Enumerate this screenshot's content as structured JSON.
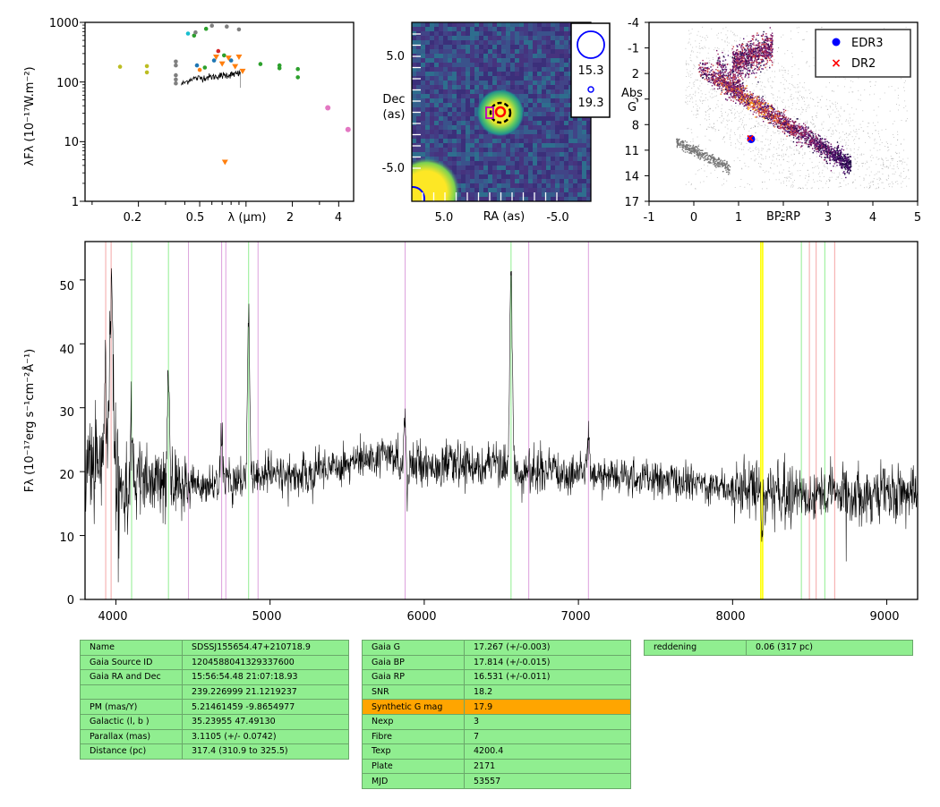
{
  "sed": {
    "ylabel": "λFλ (10⁻¹⁷W.m⁻²)",
    "xlabel": "λ (μm)",
    "xticks": [
      "0.2",
      "0.5",
      "λ (μm)",
      "2",
      "4"
    ],
    "yticks": [
      "1000",
      "100",
      "10",
      "1"
    ]
  },
  "image": {
    "ylabel_1": "Dec",
    "ylabel_2": "(as)",
    "xlabel": "RA (as)",
    "xticks": [
      "5.0",
      "-5.0"
    ],
    "yticks": [
      "5.0",
      "-5.0"
    ],
    "legend": [
      "15.3",
      "19.3"
    ]
  },
  "hr": {
    "xlabel": "BP-RP",
    "ylabel_1": "Abs",
    "ylabel_2": "G",
    "xticks": [
      "-1",
      "0",
      "1",
      "2",
      "3",
      "4",
      "5"
    ],
    "yticks": [
      "-4",
      "-1",
      "2",
      "5",
      "8",
      "11",
      "14",
      "17"
    ],
    "legend": [
      {
        "label": "EDR3",
        "color": "#0000ff"
      },
      {
        "label": "DR2",
        "color": "#ff0000"
      }
    ]
  },
  "spectrum": {
    "ylabel": "Fλ (10⁻¹⁷erg s⁻¹cm⁻²Å⁻¹)",
    "xticks": [
      "4000",
      "5000",
      "6000",
      "7000",
      "8000",
      "9000"
    ],
    "yticks": [
      "0",
      "10",
      "20",
      "30",
      "40",
      "50"
    ]
  },
  "chart_data": [
    {
      "type": "scatter",
      "panel": "SED",
      "x_scale": "log",
      "y_scale": "log",
      "xlim": [
        0.09,
        5.0
      ],
      "ylim": [
        1,
        1000
      ],
      "points": [
        {
          "x": 0.152,
          "y": 180,
          "color": "#bcbd22"
        },
        {
          "x": 0.227,
          "y": 185,
          "color": "#bcbd22"
        },
        {
          "x": 0.227,
          "y": 145,
          "color": "#bcbd22"
        },
        {
          "x": 0.35,
          "y": 220,
          "color": "#7f7f7f"
        },
        {
          "x": 0.35,
          "y": 190,
          "color": "#7f7f7f"
        },
        {
          "x": 0.35,
          "y": 130,
          "color": "#7f7f7f"
        },
        {
          "x": 0.35,
          "y": 110,
          "color": "#7f7f7f"
        },
        {
          "x": 0.35,
          "y": 95,
          "color": "#7f7f7f"
        },
        {
          "x": 0.42,
          "y": 650,
          "color": "#17becf"
        },
        {
          "x": 0.46,
          "y": 600,
          "color": "#2ca02c"
        },
        {
          "x": 0.47,
          "y": 680,
          "color": "#7f7f7f"
        },
        {
          "x": 0.55,
          "y": 780,
          "color": "#2ca02c"
        },
        {
          "x": 0.6,
          "y": 880,
          "color": "#7f7f7f"
        },
        {
          "x": 0.75,
          "y": 850,
          "color": "#7f7f7f"
        },
        {
          "x": 0.9,
          "y": 760,
          "color": "#7f7f7f"
        },
        {
          "x": 0.48,
          "y": 190,
          "color": "#1f77b4"
        },
        {
          "x": 0.5,
          "y": 160,
          "color": "#ff7f0e"
        },
        {
          "x": 0.54,
          "y": 175,
          "color": "#2ca02c"
        },
        {
          "x": 0.62,
          "y": 230,
          "color": "#1f77b4"
        },
        {
          "x": 0.64,
          "y": 260,
          "color": "#ff7f0e"
        },
        {
          "x": 0.66,
          "y": 330,
          "color": "#d62728"
        },
        {
          "x": 0.7,
          "y": 200,
          "color": "#ff7f0e"
        },
        {
          "x": 0.72,
          "y": 280,
          "color": "#2ca02c"
        },
        {
          "x": 0.77,
          "y": 250,
          "color": "#ff7f0e"
        },
        {
          "x": 0.8,
          "y": 230,
          "color": "#1f77b4"
        },
        {
          "x": 0.85,
          "y": 180,
          "color": "#ff7f0e"
        },
        {
          "x": 0.9,
          "y": 260,
          "color": "#ff7f0e"
        },
        {
          "x": 0.95,
          "y": 150,
          "color": "#ff7f0e"
        },
        {
          "x": 1.24,
          "y": 200,
          "color": "#2ca02c"
        },
        {
          "x": 1.65,
          "y": 190,
          "color": "#2ca02c"
        },
        {
          "x": 1.65,
          "y": 170,
          "color": "#2ca02c"
        },
        {
          "x": 2.17,
          "y": 165,
          "color": "#2ca02c"
        },
        {
          "x": 2.17,
          "y": 120,
          "color": "#2ca02c"
        },
        {
          "x": 3.4,
          "y": 37,
          "color": "#e377c2"
        },
        {
          "x": 4.6,
          "y": 16,
          "color": "#e377c2"
        },
        {
          "x": 0.73,
          "y": 4.5,
          "color": "#ff7f0e"
        }
      ]
    },
    {
      "type": "heatmap",
      "panel": "image",
      "xlim": [
        10,
        -10
      ],
      "ylim": [
        -10,
        10
      ],
      "sources": [
        {
          "ra": -6.0,
          "dec": -2.6
        },
        {
          "ra": 8.5,
          "dec": -9.5
        }
      ]
    },
    {
      "type": "scatter",
      "panel": "HR",
      "xlim": [
        -1,
        5
      ],
      "ylim": [
        17,
        -4
      ],
      "points": [
        {
          "series": "EDR3",
          "x": 1.28,
          "y": 9.7
        },
        {
          "series": "DR2",
          "x": 1.26,
          "y": 9.6
        }
      ]
    },
    {
      "type": "line",
      "panel": "spectrum",
      "xlim": [
        3800,
        9200
      ],
      "ylim": [
        0,
        56
      ],
      "emission_lines": [
        {
          "x": 3934,
          "y": 33
        },
        {
          "x": 3969,
          "y": 50
        },
        {
          "x": 4102,
          "y": 26
        },
        {
          "x": 4341,
          "y": 35
        },
        {
          "x": 4686,
          "y": 26
        },
        {
          "x": 4861,
          "y": 46
        },
        {
          "x": 5876,
          "y": 30
        },
        {
          "x": 6563,
          "y": 51
        },
        {
          "x": 7065,
          "y": 26
        }
      ],
      "line_markers": [
        {
          "x": 3934,
          "color": "#f4a6a6"
        },
        {
          "x": 3969,
          "color": "#f4a6a6"
        },
        {
          "x": 4102,
          "color": "#90ee90"
        },
        {
          "x": 4341,
          "color": "#90ee90"
        },
        {
          "x": 4471,
          "color": "#dda0dd"
        },
        {
          "x": 4686,
          "color": "#dda0dd"
        },
        {
          "x": 4713,
          "color": "#dda0dd"
        },
        {
          "x": 4861,
          "color": "#90ee90"
        },
        {
          "x": 4922,
          "color": "#dda0dd"
        },
        {
          "x": 5876,
          "color": "#dda0dd"
        },
        {
          "x": 6563,
          "color": "#90ee90"
        },
        {
          "x": 6678,
          "color": "#dda0dd"
        },
        {
          "x": 7065,
          "color": "#dda0dd"
        },
        {
          "x": 8183,
          "color": "#ffff00"
        },
        {
          "x": 8195,
          "color": "#ffff00"
        },
        {
          "x": 8446,
          "color": "#90ee90"
        },
        {
          "x": 8498,
          "color": "#f4a6a6"
        },
        {
          "x": 8542,
          "color": "#f4a6a6"
        },
        {
          "x": 8598,
          "color": "#90ee90"
        },
        {
          "x": 8662,
          "color": "#f4a6a6"
        }
      ]
    }
  ],
  "tables": {
    "left": [
      [
        "Name",
        "SDSSJ155654.47+210718.9"
      ],
      [
        "Gaia Source ID",
        "1204588041329337600"
      ],
      [
        "Gaia RA and Dec",
        "15:56:54.48     21:07:18.93"
      ],
      [
        "",
        "239.226999     21.1219237"
      ],
      [
        "PM (mas/Y)",
        "5.21461459     -9.8654977"
      ],
      [
        "Galactic (l, b )",
        "35.23955     47.49130"
      ],
      [
        "Parallax (mas)",
        "3.1105 (+/- 0.0742)"
      ],
      [
        "Distance (pc)",
        "317.4 (310.9 to 325.5)"
      ]
    ],
    "middle": [
      [
        "Gaia G",
        "17.267 (+/-0.003)"
      ],
      [
        "Gaia BP",
        "17.814 (+/-0.015)"
      ],
      [
        "Gaia RP",
        "16.531 (+/-0.011)"
      ],
      [
        "SNR",
        "18.2"
      ],
      [
        "Synthetic G mag",
        "17.9"
      ],
      [
        "Nexp",
        "3"
      ],
      [
        "Fibre",
        "7"
      ],
      [
        "Texp",
        "4200.4"
      ],
      [
        "Plate",
        "2171"
      ],
      [
        "MJD",
        "53557"
      ]
    ],
    "right": [
      [
        "reddening",
        "0.06 (317 pc)"
      ]
    ],
    "highlight_row": "Synthetic G mag",
    "highlight_color": "#ffa500"
  }
}
